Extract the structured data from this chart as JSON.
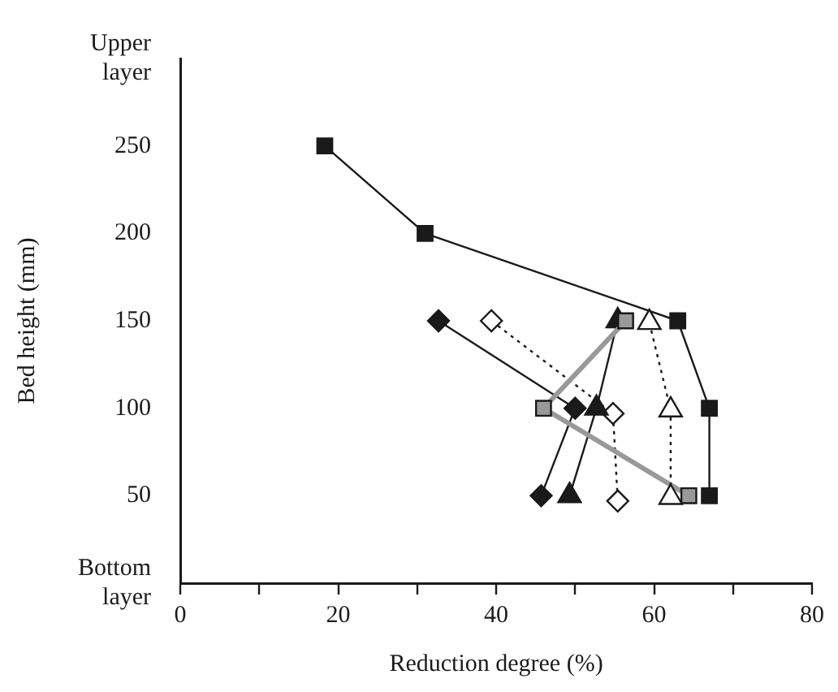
{
  "chart_data": {
    "type": "line",
    "xlabel": "Reduction degree (%)",
    "ylabel": "Bed height (mm)",
    "xlim": [
      0,
      80
    ],
    "xticks": [
      0,
      {
        "value": 10,
        "label": null
      },
      20,
      {
        "value": 30,
        "label": null
      },
      40,
      {
        "value": 50,
        "label": null
      },
      60,
      {
        "value": 70,
        "label": null
      },
      80
    ],
    "ylim": [
      0,
      300
    ],
    "yticks": [
      {
        "value": 0,
        "label": "Bottom layer"
      },
      50,
      100,
      150,
      200,
      250,
      {
        "value": 300,
        "label": "Upper layer"
      }
    ],
    "grid": false,
    "legend": false,
    "series": [
      {
        "x": [
          18.3,
          31,
          63,
          67,
          67
        ],
        "values": [
          250,
          200,
          150,
          100,
          50
        ],
        "color": "#1a1a1a",
        "marker": "square",
        "line_style": "solid"
      },
      {
        "x": [
          32.7,
          50,
          45.7
        ],
        "values": [
          150,
          100,
          50
        ],
        "color": "#1a1a1a",
        "marker": "diamond",
        "line_style": "solid"
      },
      {
        "x": [
          39.4,
          54.8,
          55.4
        ],
        "values": [
          150,
          97,
          47
        ],
        "color": "#ffffff",
        "marker": "diamond",
        "line_style": "dotted"
      },
      {
        "x": [
          55.4,
          52.7,
          49.3
        ],
        "values": [
          150,
          100,
          50
        ],
        "color": "#1a1a1a",
        "marker": "triangle",
        "line_style": "solid"
      },
      {
        "x": [
          56.4,
          46,
          64.4
        ],
        "values": [
          150,
          100,
          50
        ],
        "color": "#999999",
        "marker": "square",
        "line_style": "solid"
      },
      {
        "x": [
          59.4,
          62.1,
          62.1
        ],
        "values": [
          149,
          99,
          49
        ],
        "color": "#ffffff",
        "marker": "triangle",
        "line_style": "dotted"
      }
    ]
  }
}
